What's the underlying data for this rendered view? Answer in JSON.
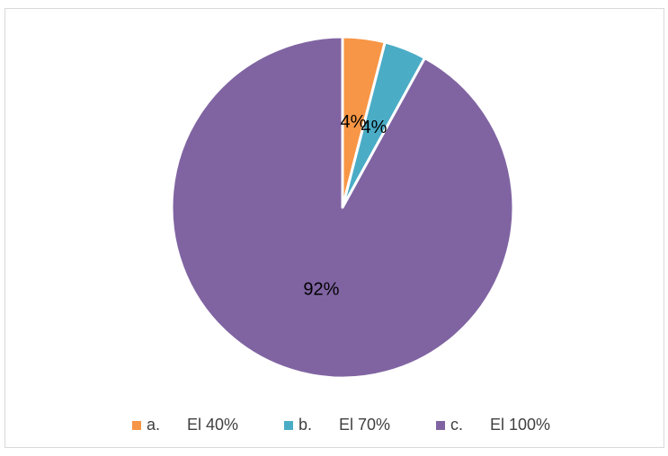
{
  "chart_data": {
    "type": "pie",
    "categories": [
      "a.      El 40%",
      "b.      El 70%",
      "c.      El 100%"
    ],
    "values": [
      4,
      4,
      92
    ],
    "value_labels": [
      "4%",
      "4%",
      "92%"
    ],
    "colors": [
      "#f79646",
      "#4bacc6",
      "#8064a2"
    ],
    "legend": "bottom"
  }
}
